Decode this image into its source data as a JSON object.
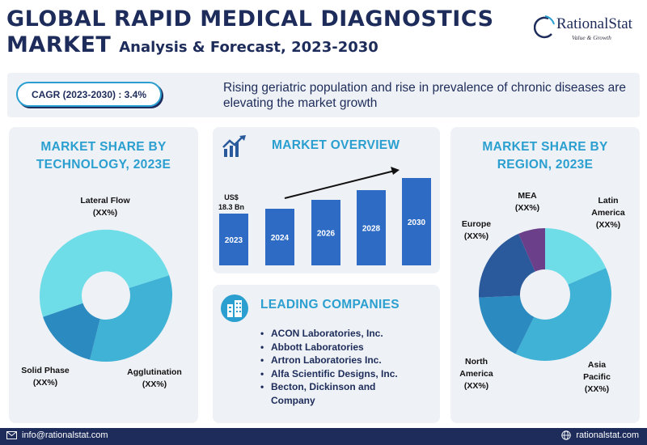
{
  "header": {
    "title_line1": "GLOBAL RAPID MEDICAL DIAGNOSTICS",
    "title_line2_main": "MARKET",
    "title_line2_sub": "Analysis & Forecast, 2023-2030"
  },
  "logo": {
    "name": "RationalStat",
    "tagline": "Value & Growth"
  },
  "banner": {
    "cagr": "CAGR (2023-2030) : 3.4%",
    "text": "Rising geriatric population and rise in prevalence of chronic diseases are elevating the market growth"
  },
  "technology": {
    "title": "MARKET SHARE BY TECHNOLOGY, 2023E",
    "labels": {
      "lateral_flow": "Lateral Flow",
      "solid_phase": "Solid Phase",
      "agglutination": "Agglutination",
      "value": "(XX%)"
    },
    "colors": [
      "#6fdde8",
      "#3fb2d6",
      "#2b8bc0"
    ]
  },
  "overview": {
    "title": "MARKET OVERVIEW",
    "value_label_line1": "US$",
    "value_label_line2": "18.3 Bn",
    "bars": [
      "2023",
      "2024",
      "2026",
      "2028",
      "2030"
    ],
    "bar_color": "#2e6bc4"
  },
  "companies": {
    "title": "LEADING COMPANIES",
    "items": [
      "ACON Laboratories, Inc.",
      "Abbott Laboratories",
      "Artron Laboratories Inc.",
      "Alfa Scientific Designs, Inc.",
      "Becton, Dickinson and",
      "Company"
    ]
  },
  "region": {
    "title": "MARKET SHARE BY REGION, 2023E",
    "labels": {
      "mea": "MEA",
      "latin_america_1": "Latin",
      "latin_america_2": "America",
      "europe": "Europe",
      "north_america_1": "North",
      "north_america_2": "America",
      "asia_pacific_1": "Asia",
      "asia_pacific_2": "Pacific",
      "value": "(XX%)"
    },
    "colors": [
      "#6fdde8",
      "#3fb2d6",
      "#2b8bc0",
      "#2a5a9c",
      "#6b3f8a"
    ]
  },
  "footer": {
    "email": "info@rationalstat.com",
    "website": "rationalstat.com"
  }
}
